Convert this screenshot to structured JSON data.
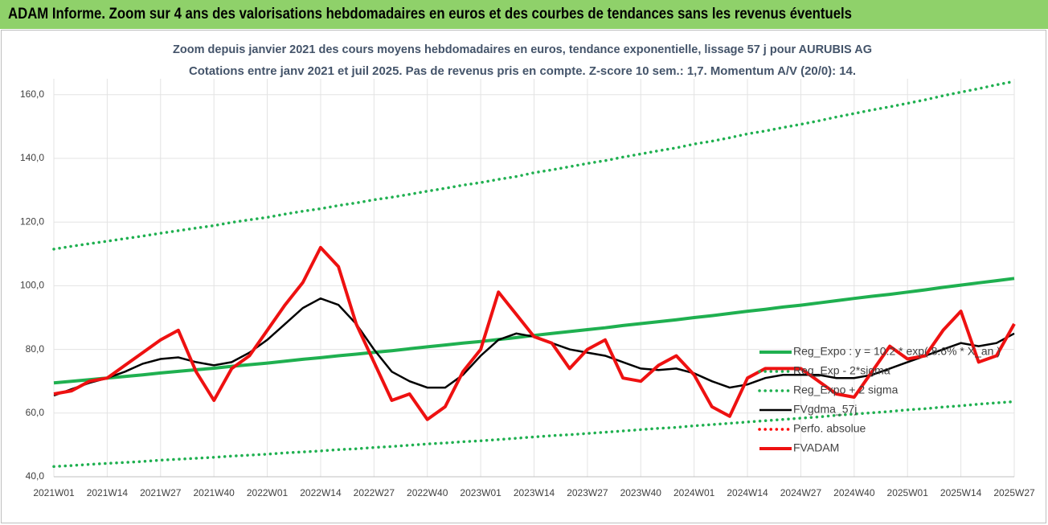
{
  "header": {
    "title": "ADAM Informe. Zoom sur 4 ans des valorisations hebdomadaires en euros et des courbes de tendances sans les revenus éventuels"
  },
  "chart_data": {
    "type": "line",
    "title": "Zoom depuis janvier 2021 des cours moyens hebdomadaires en euros, tendance exponentielle, lissage 57 j pour AURUBIS AG",
    "subtitle": "Cotations entre janv 2021 et juil 2025. Pas de revenus pris en compte. Z-score 10 sem.: 1,7. Momentum A/V (20/0): 14.",
    "categories": [
      "2021W01",
      null,
      null,
      "2021W14",
      null,
      null,
      "2021W27",
      null,
      null,
      "2021W40",
      null,
      null,
      "2022W01",
      null,
      null,
      "2022W14",
      null,
      null,
      "2022W27",
      null,
      null,
      "2022W40",
      null,
      null,
      "2023W01",
      null,
      null,
      "2023W14",
      null,
      null,
      "2023W27",
      null,
      null,
      "2023W40",
      null,
      null,
      "2024W01",
      null,
      null,
      "2024W14",
      null,
      null,
      "2024W27",
      null,
      null,
      "2024W40",
      null,
      null,
      "2025W01",
      null,
      null,
      "2025W14",
      null,
      null,
      "2025W27"
    ],
    "ylim": [
      40,
      165
    ],
    "yticks": [
      {
        "value": 40,
        "label": "40,0"
      },
      {
        "value": 60,
        "label": "60,0"
      },
      {
        "value": 80,
        "label": "80,0"
      },
      {
        "value": 100,
        "label": "100,0"
      },
      {
        "value": 120,
        "label": "120,0"
      },
      {
        "value": 140,
        "label": "140,0"
      },
      {
        "value": 160,
        "label": "160,0"
      }
    ],
    "grid": true,
    "legend": "right",
    "series": [
      {
        "name": "Reg_Expo : y = 10.2 * exp( 8.6% * X_an )",
        "color": "#1fb050",
        "style": "solid",
        "values": [
          69.5,
          70.0,
          70.5,
          71.0,
          71.5,
          72.0,
          72.6,
          73.1,
          73.6,
          74.1,
          74.7,
          75.2,
          75.7,
          76.3,
          76.9,
          77.4,
          78.0,
          78.5,
          79.1,
          79.6,
          80.2,
          80.8,
          81.4,
          82.0,
          82.5,
          83.1,
          83.7,
          84.4,
          85.0,
          85.6,
          86.2,
          86.8,
          87.5,
          88.1,
          88.7,
          89.3,
          90.0,
          90.6,
          91.3,
          92.0,
          92.6,
          93.3,
          93.9,
          94.6,
          95.3,
          96.0,
          96.7,
          97.3,
          98.0,
          98.7,
          99.5,
          100.2,
          100.9,
          101.6,
          102.3
        ]
      },
      {
        "name": "Reg_Exp - 2*sigma",
        "color": "#1fb050",
        "style": "dotted",
        "values": [
          43.2,
          43.5,
          43.9,
          44.2,
          44.5,
          44.8,
          45.2,
          45.5,
          45.8,
          46.1,
          46.5,
          46.8,
          47.1,
          47.5,
          47.8,
          48.1,
          48.5,
          48.8,
          49.2,
          49.5,
          49.9,
          50.3,
          50.6,
          51.0,
          51.3,
          51.7,
          52.1,
          52.5,
          52.9,
          53.2,
          53.6,
          54.0,
          54.4,
          54.8,
          55.2,
          55.5,
          56.0,
          56.4,
          56.8,
          57.2,
          57.6,
          58.0,
          58.4,
          58.8,
          59.3,
          59.7,
          60.1,
          60.5,
          61.0,
          61.4,
          61.9,
          62.3,
          62.8,
          63.2,
          63.6
        ]
      },
      {
        "name": "Reg_Expo + 2 sigma",
        "color": "#1fb050",
        "style": "dotted",
        "values": [
          111.5,
          112.4,
          113.2,
          114.0,
          114.8,
          115.6,
          116.5,
          117.3,
          118.1,
          118.9,
          119.9,
          120.7,
          121.5,
          122.5,
          123.4,
          124.2,
          125.2,
          126.0,
          127.0,
          127.8,
          128.7,
          129.7,
          130.6,
          131.6,
          132.4,
          133.4,
          134.3,
          135.5,
          136.4,
          137.4,
          138.4,
          139.3,
          140.4,
          141.4,
          142.4,
          143.3,
          144.5,
          145.4,
          146.5,
          147.7,
          148.6,
          149.7,
          150.7,
          151.8,
          153.0,
          154.1,
          155.2,
          156.2,
          157.3,
          158.4,
          159.7,
          160.8,
          161.9,
          163.1,
          164.2
        ]
      },
      {
        "name": "FVgdma_57j",
        "color": "#000000",
        "style": "solid",
        "values": [
          65.5,
          67.5,
          69.5,
          71,
          73,
          75.5,
          77,
          77.5,
          76,
          75,
          76,
          79,
          83,
          88,
          93,
          96,
          94,
          88,
          80,
          73,
          70,
          68,
          68,
          72,
          78,
          83,
          85,
          84,
          82,
          80,
          79,
          78,
          76,
          74,
          73.5,
          74,
          72.5,
          70,
          68,
          69,
          71,
          72,
          72,
          72,
          71,
          71,
          72,
          74,
          76,
          78,
          80,
          82,
          81,
          82,
          85
        ]
      },
      {
        "name": "Perfo. absolue",
        "color": "#ff0000",
        "style": "dotted",
        "values": [
          null,
          null,
          null,
          null,
          null,
          null,
          null,
          null,
          null,
          null,
          null,
          null,
          null,
          null,
          null,
          null,
          null,
          null,
          null,
          null,
          null,
          null,
          null,
          null,
          null,
          null,
          null,
          null,
          null,
          null,
          null,
          null,
          null,
          null,
          null,
          null,
          null,
          null,
          null,
          null,
          null,
          null,
          null,
          null,
          null,
          null,
          null,
          null,
          null,
          null,
          null,
          null,
          null,
          null,
          null
        ]
      },
      {
        "name": "FVADAM",
        "color": "#ee1111",
        "style": "thick",
        "values": [
          66,
          67,
          70,
          71,
          75,
          79,
          83,
          86,
          73,
          64,
          74,
          78,
          86,
          94,
          101,
          112,
          106,
          88,
          76,
          64,
          66,
          58,
          62,
          73,
          80,
          98,
          91,
          84,
          82,
          74,
          80,
          83,
          71,
          70,
          75,
          78,
          72,
          62,
          59,
          71,
          74,
          74,
          74,
          70,
          66,
          65,
          73,
          81,
          77,
          78,
          86,
          92,
          76,
          78,
          88
        ]
      }
    ]
  }
}
